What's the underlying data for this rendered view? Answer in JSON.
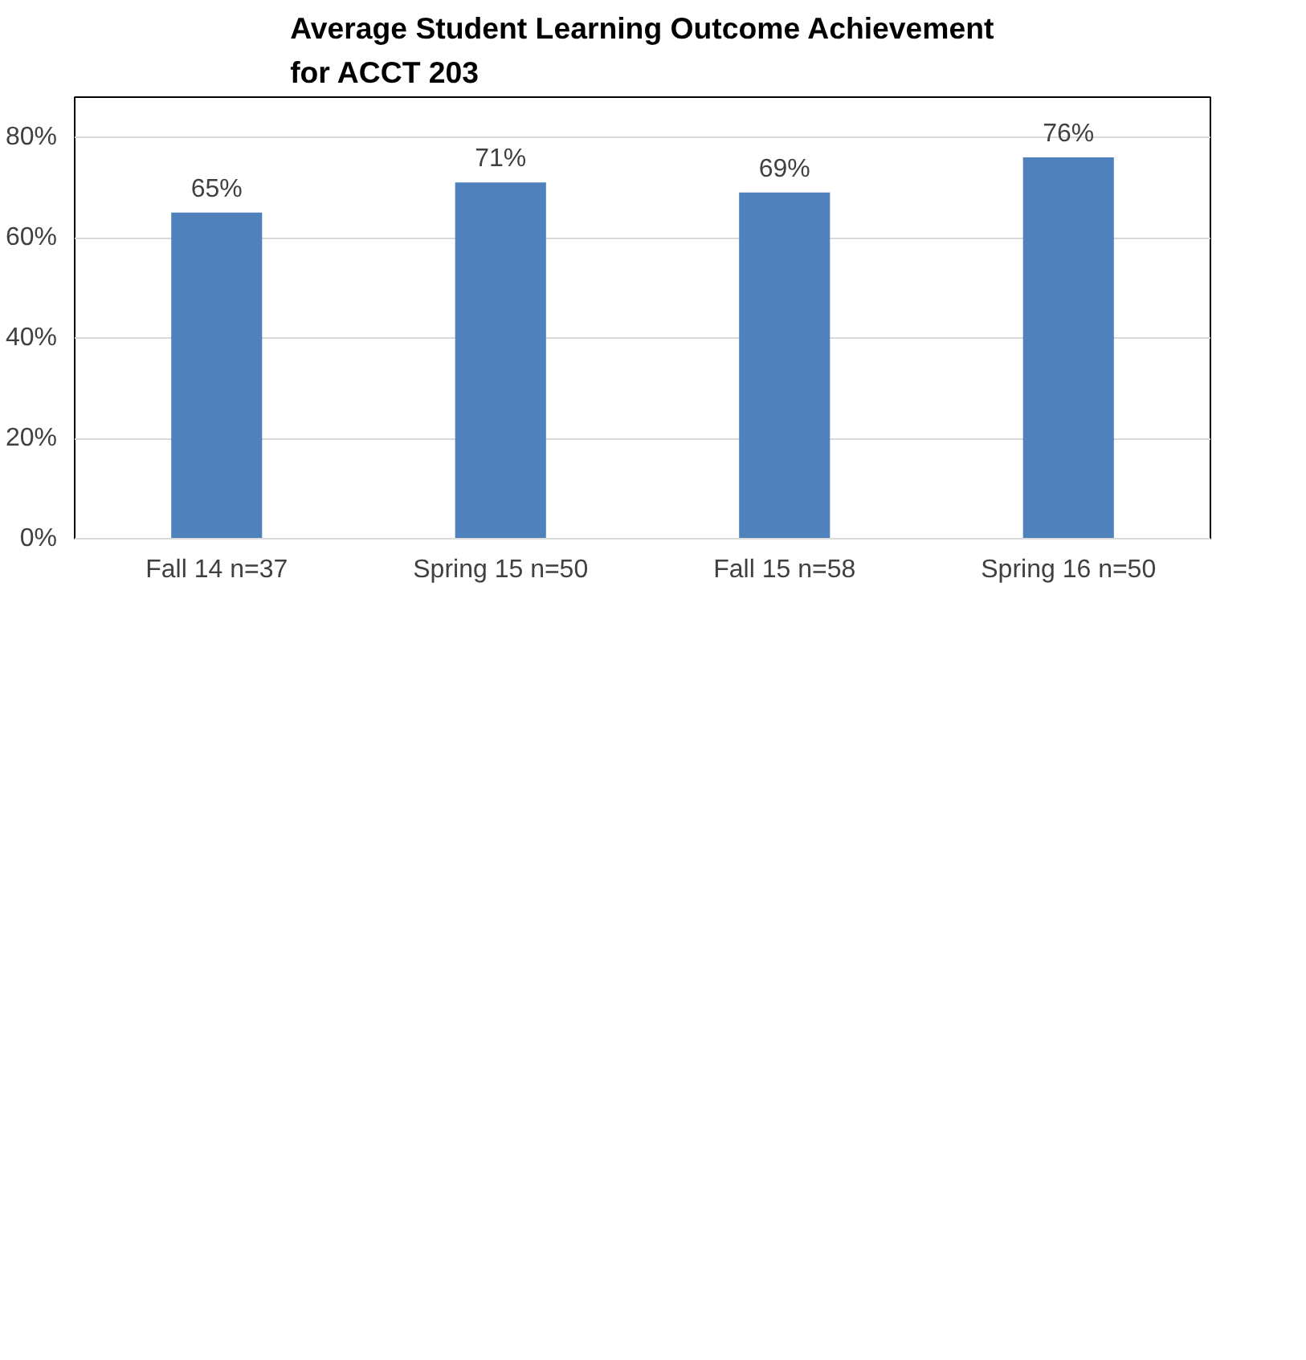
{
  "chart_data": {
    "type": "bar",
    "title": "Average Student Learning Outcome Achievement\nfor ACCT 203",
    "categories": [
      "Fall 14 n=37",
      "Spring 15 n=50",
      "Fall 15 n=58",
      "Spring 16 n=50"
    ],
    "values": [
      65,
      71,
      69,
      76
    ],
    "value_labels": [
      "65%",
      "71%",
      "69%",
      "76%"
    ],
    "color": "#4f81bd",
    "ylim": [
      0,
      88
    ],
    "yticks": [
      {
        "value": 0,
        "label": "0%"
      },
      {
        "value": 20,
        "label": "20%"
      },
      {
        "value": 40,
        "label": "40%"
      },
      {
        "value": 60,
        "label": "60%"
      },
      {
        "value": 80,
        "label": "80%"
      }
    ],
    "grid": "y"
  }
}
